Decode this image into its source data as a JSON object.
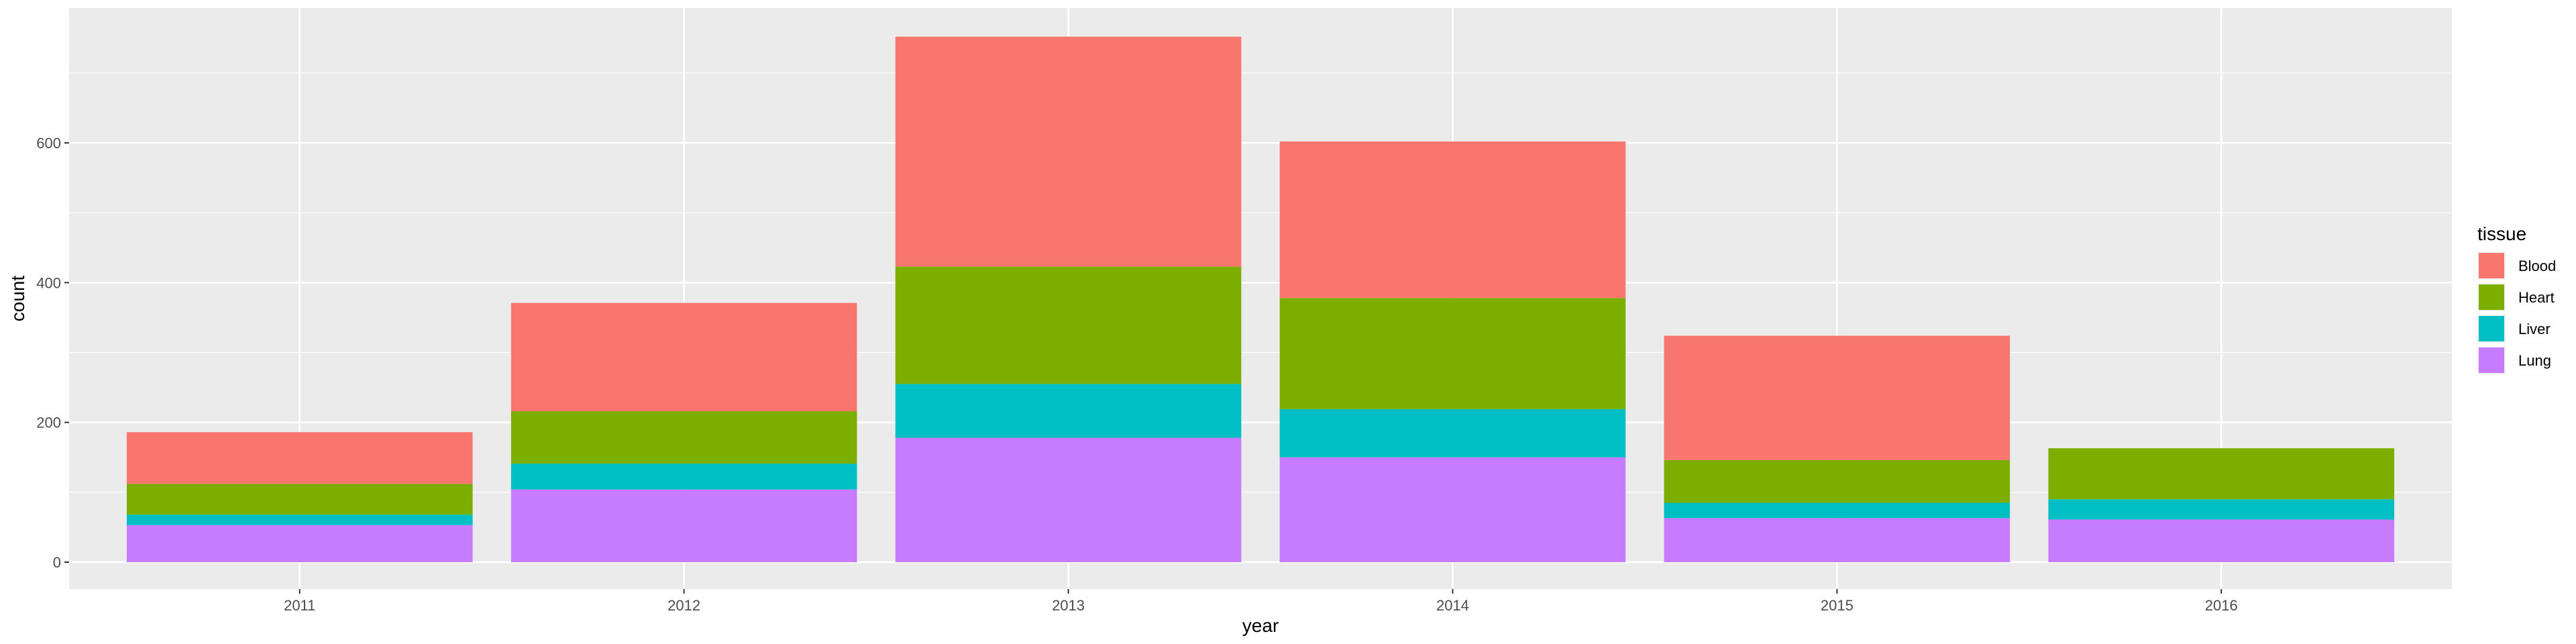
{
  "chart_data": {
    "type": "bar",
    "stacked": true,
    "title": "",
    "xlabel": "year",
    "ylabel": "count",
    "categories": [
      "2011",
      "2012",
      "2013",
      "2014",
      "2015",
      "2016"
    ],
    "ylim": [
      0,
      790
    ],
    "yticks": [
      0,
      200,
      400,
      600
    ],
    "grid": true,
    "legend_title": "tissue",
    "legend_position": "right",
    "series": [
      {
        "name": "Lung",
        "color": "#C77CFF",
        "values": [
          53,
          104,
          178,
          150,
          63,
          61
        ]
      },
      {
        "name": "Liver",
        "color": "#00BFC4",
        "values": [
          15,
          37,
          77,
          69,
          22,
          29
        ]
      },
      {
        "name": "Heart",
        "color": "#7CAE00",
        "values": [
          44,
          75,
          168,
          159,
          61,
          73
        ]
      },
      {
        "name": "Blood",
        "color": "#F8766D",
        "values": [
          74,
          155,
          329,
          224,
          178,
          0
        ]
      }
    ]
  }
}
